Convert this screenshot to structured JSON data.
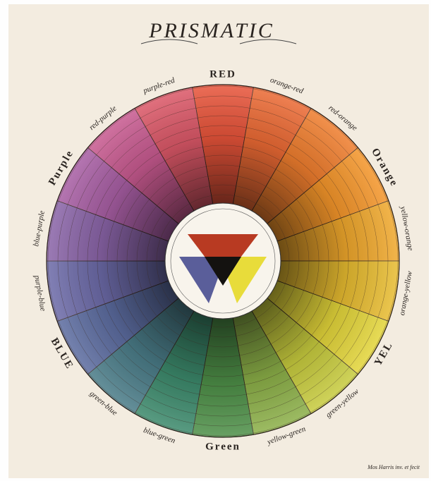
{
  "title": "PRISMATIC",
  "labels": [
    "RED",
    "orange-red",
    "red-orange",
    "Orange",
    "yellow-orange",
    "orange-yellow",
    "YEL",
    "green-yellow",
    "yellow-green",
    "Green",
    "blue-green",
    "green-blue",
    "BLUE",
    "purple-blue",
    "blue-purple",
    "Purple",
    "red-purple",
    "purple-red"
  ],
  "signature": "Mos Harris inv. et fecit"
}
